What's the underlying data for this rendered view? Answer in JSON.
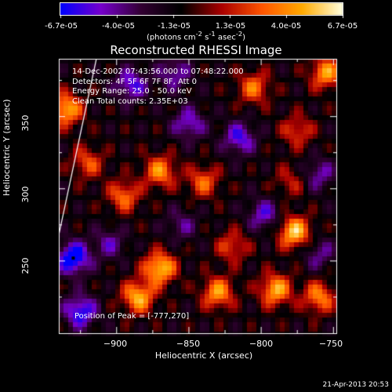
{
  "colorbar": {
    "tick_labels": [
      "-6.7e-05",
      "-4.0e-05",
      "-1.3e-05",
      "1.3e-05",
      "4.0e-05",
      "6.7e-05"
    ],
    "unit_html": "(photons cm<sup>-2</sup> s<sup>-1</sup> asec<sup>-2</sup>)",
    "range": [
      -6.7e-05,
      6.7e-05
    ]
  },
  "overlay": {
    "line1": "14-Dec-2002 07:43:56.000 to 07:48:22.000",
    "line2": "Detectors: 4F 5F 6F 7F 8F, Att 0",
    "line3": "Energy Range: 25.0 - 50.0 keV",
    "line4": "Clean    Total counts: 2.35E+03"
  },
  "peak_text": "Position of Peak = [-777,270]",
  "footer_timestamp": "21-Apr-2013 20:53",
  "colors": {
    "background": "#000000",
    "text": "#ffffff"
  },
  "chart_data": {
    "type": "heatmap",
    "title": "Reconstructed RHESSI Image",
    "xlabel": "Heliocentric X (arcsec)",
    "ylabel": "Heliocentric Y (arcsec)",
    "xlim": [
      -940,
      -748
    ],
    "ylim": [
      200,
      390
    ],
    "x_ticks": [
      -900,
      -850,
      -800,
      -750
    ],
    "y_ticks": [
      250,
      300,
      350
    ],
    "x_tick_labels": [
      "−900",
      "−850",
      "−800",
      "−750"
    ],
    "y_tick_labels": [
      "250",
      "300",
      "350"
    ],
    "colormap": [
      "#0000ff",
      "#7700cc",
      "#330033",
      "#000000",
      "#aa0000",
      "#ff5500",
      "#ffaa00",
      "#ffffdd"
    ],
    "peak_position": [
      -777,
      270
    ],
    "limb_line": [
      [
        -940,
        268
      ],
      [
        -914,
        390
      ]
    ],
    "sources": [
      {
        "x": -885,
        "y": 225,
        "value": 6.2e-05
      },
      {
        "x": -870,
        "y": 245,
        "value": 6.7e-05
      },
      {
        "x": -830,
        "y": 228,
        "value": 5.5e-05
      },
      {
        "x": -790,
        "y": 230,
        "value": 6e-05
      },
      {
        "x": -777,
        "y": 270,
        "value": 6.7e-05
      },
      {
        "x": -760,
        "y": 225,
        "value": 5e-05
      },
      {
        "x": -820,
        "y": 260,
        "value": 3.5e-05
      },
      {
        "x": -895,
        "y": 295,
        "value": 4.5e-05
      },
      {
        "x": -870,
        "y": 312,
        "value": 5.2e-05
      },
      {
        "x": -840,
        "y": 305,
        "value": 4.2e-05
      },
      {
        "x": -920,
        "y": 318,
        "value": 3.8e-05
      },
      {
        "x": -935,
        "y": 355,
        "value": 6.2e-05
      },
      {
        "x": -805,
        "y": 370,
        "value": 4.5e-05
      },
      {
        "x": -775,
        "y": 340,
        "value": 3.5e-05
      },
      {
        "x": -755,
        "y": 380,
        "value": 5.5e-05
      },
      {
        "x": -780,
        "y": 305,
        "value": 2.5e-05
      },
      {
        "x": -930,
        "y": 252,
        "value": -6.7e-05
      },
      {
        "x": -925,
        "y": 215,
        "value": -5.5e-05
      },
      {
        "x": -890,
        "y": 372,
        "value": -4.5e-05
      },
      {
        "x": -850,
        "y": 345,
        "value": -4e-05
      },
      {
        "x": -860,
        "y": 380,
        "value": -3.5e-05
      },
      {
        "x": -815,
        "y": 335,
        "value": -4.5e-05
      },
      {
        "x": -798,
        "y": 282,
        "value": -3.8e-05
      },
      {
        "x": -905,
        "y": 262,
        "value": -3e-05
      },
      {
        "x": -855,
        "y": 275,
        "value": -2.5e-05
      },
      {
        "x": -760,
        "y": 310,
        "value": -3.2e-05
      },
      {
        "x": -760,
        "y": 255,
        "value": -2.8e-05
      }
    ]
  }
}
